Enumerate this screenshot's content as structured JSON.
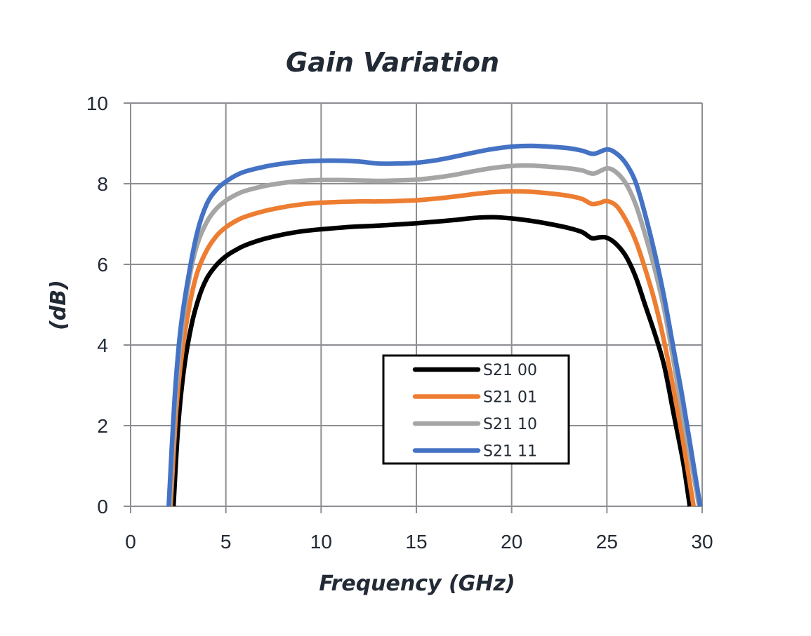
{
  "chart_data": {
    "type": "line",
    "title": "Gain Variation",
    "xlabel": "Frequency (GHz)",
    "ylabel": "(dB)",
    "xlim": [
      0,
      30
    ],
    "ylim": [
      0,
      10
    ],
    "xticks": [
      0,
      5,
      10,
      15,
      20,
      25,
      30
    ],
    "yticks": [
      0,
      2,
      4,
      6,
      8,
      10
    ],
    "grid": true,
    "legend_position": "center-bottom",
    "series": [
      {
        "name": "S21 00",
        "color": "#000000",
        "points": [
          [
            2.25,
            0
          ],
          [
            2.5,
            2.0
          ],
          [
            2.8,
            3.4
          ],
          [
            3.2,
            4.5
          ],
          [
            3.6,
            5.2
          ],
          [
            4,
            5.65
          ],
          [
            4.5,
            5.98
          ],
          [
            5,
            6.2
          ],
          [
            5.5,
            6.35
          ],
          [
            6,
            6.47
          ],
          [
            7,
            6.63
          ],
          [
            8,
            6.74
          ],
          [
            9,
            6.82
          ],
          [
            10,
            6.87
          ],
          [
            11,
            6.91
          ],
          [
            12,
            6.94
          ],
          [
            13,
            6.96
          ],
          [
            14,
            6.99
          ],
          [
            15,
            7.02
          ],
          [
            16,
            7.06
          ],
          [
            17,
            7.1
          ],
          [
            18,
            7.15
          ],
          [
            19,
            7.17
          ],
          [
            20,
            7.14
          ],
          [
            21,
            7.08
          ],
          [
            22,
            7.0
          ],
          [
            23,
            6.9
          ],
          [
            23.7,
            6.8
          ],
          [
            24.2,
            6.65
          ],
          [
            24.6,
            6.67
          ],
          [
            25,
            6.66
          ],
          [
            25.5,
            6.5
          ],
          [
            26,
            6.2
          ],
          [
            26.5,
            5.7
          ],
          [
            27,
            5.0
          ],
          [
            27.5,
            4.3
          ],
          [
            28,
            3.5
          ],
          [
            28.5,
            2.3
          ],
          [
            29,
            1.1
          ],
          [
            29.35,
            0
          ]
        ]
      },
      {
        "name": "S21 01",
        "color": "#ed7d31",
        "points": [
          [
            2.1,
            0
          ],
          [
            2.4,
            2.4
          ],
          [
            2.7,
            3.8
          ],
          [
            3.1,
            5.0
          ],
          [
            3.5,
            5.8
          ],
          [
            4,
            6.35
          ],
          [
            4.5,
            6.7
          ],
          [
            5,
            6.92
          ],
          [
            5.5,
            7.07
          ],
          [
            6,
            7.18
          ],
          [
            7,
            7.32
          ],
          [
            8,
            7.42
          ],
          [
            9,
            7.49
          ],
          [
            10,
            7.53
          ],
          [
            11,
            7.55
          ],
          [
            12,
            7.56
          ],
          [
            13,
            7.56
          ],
          [
            14,
            7.57
          ],
          [
            15,
            7.59
          ],
          [
            16,
            7.63
          ],
          [
            17,
            7.68
          ],
          [
            18,
            7.74
          ],
          [
            19,
            7.79
          ],
          [
            20,
            7.81
          ],
          [
            21,
            7.8
          ],
          [
            22,
            7.76
          ],
          [
            23,
            7.7
          ],
          [
            23.7,
            7.62
          ],
          [
            24.2,
            7.5
          ],
          [
            24.6,
            7.52
          ],
          [
            25,
            7.57
          ],
          [
            25.5,
            7.45
          ],
          [
            26,
            7.1
          ],
          [
            26.5,
            6.6
          ],
          [
            27,
            5.9
          ],
          [
            27.5,
            5.1
          ],
          [
            28,
            4.1
          ],
          [
            28.5,
            2.9
          ],
          [
            29,
            1.6
          ],
          [
            29.55,
            0
          ]
        ]
      },
      {
        "name": "S21 10",
        "color": "#a5a5a5",
        "points": [
          [
            2.05,
            0
          ],
          [
            2.35,
            2.6
          ],
          [
            2.7,
            4.4
          ],
          [
            3.1,
            5.7
          ],
          [
            3.5,
            6.5
          ],
          [
            4,
            7.05
          ],
          [
            4.5,
            7.38
          ],
          [
            5,
            7.58
          ],
          [
            5.5,
            7.72
          ],
          [
            6,
            7.82
          ],
          [
            7,
            7.94
          ],
          [
            8,
            8.02
          ],
          [
            9,
            8.07
          ],
          [
            10,
            8.09
          ],
          [
            11,
            8.09
          ],
          [
            12,
            8.08
          ],
          [
            13,
            8.07
          ],
          [
            14,
            8.08
          ],
          [
            15,
            8.1
          ],
          [
            16,
            8.15
          ],
          [
            17,
            8.22
          ],
          [
            18,
            8.31
          ],
          [
            19,
            8.39
          ],
          [
            20,
            8.44
          ],
          [
            21,
            8.45
          ],
          [
            22,
            8.42
          ],
          [
            23,
            8.38
          ],
          [
            23.7,
            8.33
          ],
          [
            24.3,
            8.25
          ],
          [
            25,
            8.38
          ],
          [
            25.5,
            8.28
          ],
          [
            26,
            8.0
          ],
          [
            26.5,
            7.5
          ],
          [
            27,
            6.75
          ],
          [
            27.5,
            5.9
          ],
          [
            28,
            4.9
          ],
          [
            28.5,
            3.6
          ],
          [
            29,
            2.2
          ],
          [
            29.85,
            0
          ]
        ]
      },
      {
        "name": "S21 11",
        "color": "#4472c4",
        "points": [
          [
            2.0,
            0
          ],
          [
            2.3,
            2.6
          ],
          [
            2.6,
            4.3
          ],
          [
            3,
            5.6
          ],
          [
            3.5,
            6.8
          ],
          [
            4,
            7.5
          ],
          [
            4.5,
            7.85
          ],
          [
            5,
            8.05
          ],
          [
            5.5,
            8.2
          ],
          [
            6,
            8.3
          ],
          [
            7,
            8.42
          ],
          [
            8,
            8.5
          ],
          [
            9,
            8.55
          ],
          [
            10,
            8.57
          ],
          [
            11,
            8.57
          ],
          [
            12,
            8.55
          ],
          [
            13,
            8.5
          ],
          [
            14,
            8.5
          ],
          [
            15,
            8.52
          ],
          [
            16,
            8.58
          ],
          [
            17,
            8.67
          ],
          [
            18,
            8.77
          ],
          [
            19,
            8.86
          ],
          [
            20,
            8.92
          ],
          [
            21,
            8.94
          ],
          [
            22,
            8.92
          ],
          [
            23,
            8.88
          ],
          [
            23.7,
            8.82
          ],
          [
            24.3,
            8.74
          ],
          [
            25,
            8.85
          ],
          [
            25.5,
            8.75
          ],
          [
            26,
            8.5
          ],
          [
            26.5,
            8.05
          ],
          [
            27,
            7.25
          ],
          [
            27.5,
            6.3
          ],
          [
            28,
            5.2
          ],
          [
            28.5,
            3.9
          ],
          [
            29,
            2.6
          ],
          [
            29.9,
            0
          ]
        ]
      }
    ]
  }
}
